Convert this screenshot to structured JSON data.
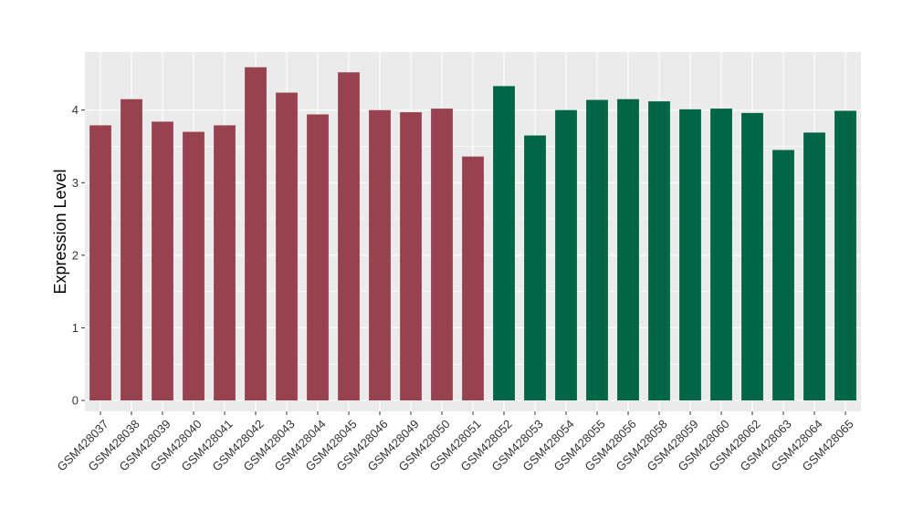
{
  "chart_data": {
    "type": "bar",
    "title": "",
    "xlabel": "",
    "ylabel": "Expression Level",
    "ylim": [
      -0.15,
      4.8
    ],
    "y_ticks": [
      0,
      1,
      2,
      3,
      4
    ],
    "grid": true,
    "categories": [
      "GSM428037",
      "GSM428038",
      "GSM428039",
      "GSM428040",
      "GSM428041",
      "GSM428042",
      "GSM428043",
      "GSM428044",
      "GSM428045",
      "GSM428046",
      "GSM428049",
      "GSM428050",
      "GSM428051",
      "GSM428052",
      "GSM428053",
      "GSM428054",
      "GSM428055",
      "GSM428056",
      "GSM428058",
      "GSM428059",
      "GSM428060",
      "GSM428062",
      "GSM428063",
      "GSM428064",
      "GSM428065"
    ],
    "values": [
      3.79,
      4.15,
      3.84,
      3.7,
      3.79,
      4.59,
      4.24,
      3.94,
      4.52,
      4.0,
      3.97,
      4.02,
      3.36,
      4.33,
      3.65,
      4.0,
      4.14,
      4.15,
      4.12,
      4.01,
      4.02,
      3.96,
      3.45,
      3.69,
      3.99
    ],
    "groups": [
      "a",
      "a",
      "a",
      "a",
      "a",
      "a",
      "a",
      "a",
      "a",
      "a",
      "a",
      "a",
      "a",
      "b",
      "b",
      "b",
      "b",
      "b",
      "b",
      "b",
      "b",
      "b",
      "b",
      "b",
      "b"
    ],
    "colors": {
      "a": "#99424f",
      "b": "#006645",
      "panel": "#ebebeb",
      "grid": "#ffffff"
    }
  }
}
